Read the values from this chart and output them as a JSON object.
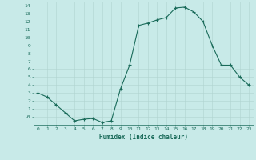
{
  "x": [
    0,
    1,
    2,
    3,
    4,
    5,
    6,
    7,
    8,
    9,
    10,
    11,
    12,
    13,
    14,
    15,
    16,
    17,
    18,
    19,
    20,
    21,
    22,
    23
  ],
  "y": [
    3.0,
    2.5,
    1.5,
    0.5,
    -0.5,
    -0.3,
    -0.2,
    -0.7,
    -0.5,
    3.5,
    6.5,
    11.5,
    11.8,
    12.2,
    12.5,
    13.7,
    13.8,
    13.2,
    12.0,
    9.0,
    6.5,
    6.5,
    5.0,
    4.0
  ],
  "xlabel": "Humidex (Indice chaleur)",
  "xlim": [
    -0.5,
    23.5
  ],
  "ylim": [
    -1.0,
    14.5
  ],
  "yticks": [
    0,
    1,
    2,
    3,
    4,
    5,
    6,
    7,
    8,
    9,
    10,
    11,
    12,
    13,
    14
  ],
  "ytick_labels": [
    "-0",
    "1",
    "2",
    "3",
    "4",
    "5",
    "6",
    "7",
    "8",
    "9",
    "10",
    "11",
    "12",
    "13",
    "14"
  ],
  "xticks": [
    0,
    1,
    2,
    3,
    4,
    5,
    6,
    7,
    8,
    9,
    10,
    11,
    12,
    13,
    14,
    15,
    16,
    17,
    18,
    19,
    20,
    21,
    22,
    23
  ],
  "line_color": "#1a6b5a",
  "bg_color": "#c8eae8",
  "grid_color": "#b0d4d0",
  "tick_color": "#1a6b5a",
  "label_color": "#1a6b5a"
}
